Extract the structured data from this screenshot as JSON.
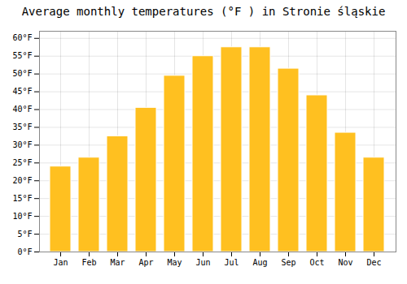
{
  "chart_data": {
    "type": "bar",
    "title": "Average monthly temperatures (°F ) in Stronie śląskie",
    "categories": [
      "Jan",
      "Feb",
      "Mar",
      "Apr",
      "May",
      "Jun",
      "Jul",
      "Aug",
      "Sep",
      "Oct",
      "Nov",
      "Dec"
    ],
    "values": [
      24,
      26.5,
      32.5,
      40.5,
      49.5,
      55,
      57.5,
      57.5,
      51.5,
      44,
      33.5,
      26.5
    ],
    "color": "#FFC020",
    "ylim": [
      0,
      62
    ],
    "yticks": [
      {
        "value": 0,
        "label": "0°F"
      },
      {
        "value": 5,
        "label": "5°F"
      },
      {
        "value": 10,
        "label": "10°F"
      },
      {
        "value": 15,
        "label": "15°F"
      },
      {
        "value": 20,
        "label": "20°F"
      },
      {
        "value": 25,
        "label": "25°F"
      },
      {
        "value": 30,
        "label": "30°F"
      },
      {
        "value": 35,
        "label": "35°F"
      },
      {
        "value": 40,
        "label": "40°F"
      },
      {
        "value": 45,
        "label": "45°F"
      },
      {
        "value": 50,
        "label": "50°F"
      },
      {
        "value": 55,
        "label": "55°F"
      },
      {
        "value": 60,
        "label": "60°F"
      }
    ],
    "grid": true
  }
}
